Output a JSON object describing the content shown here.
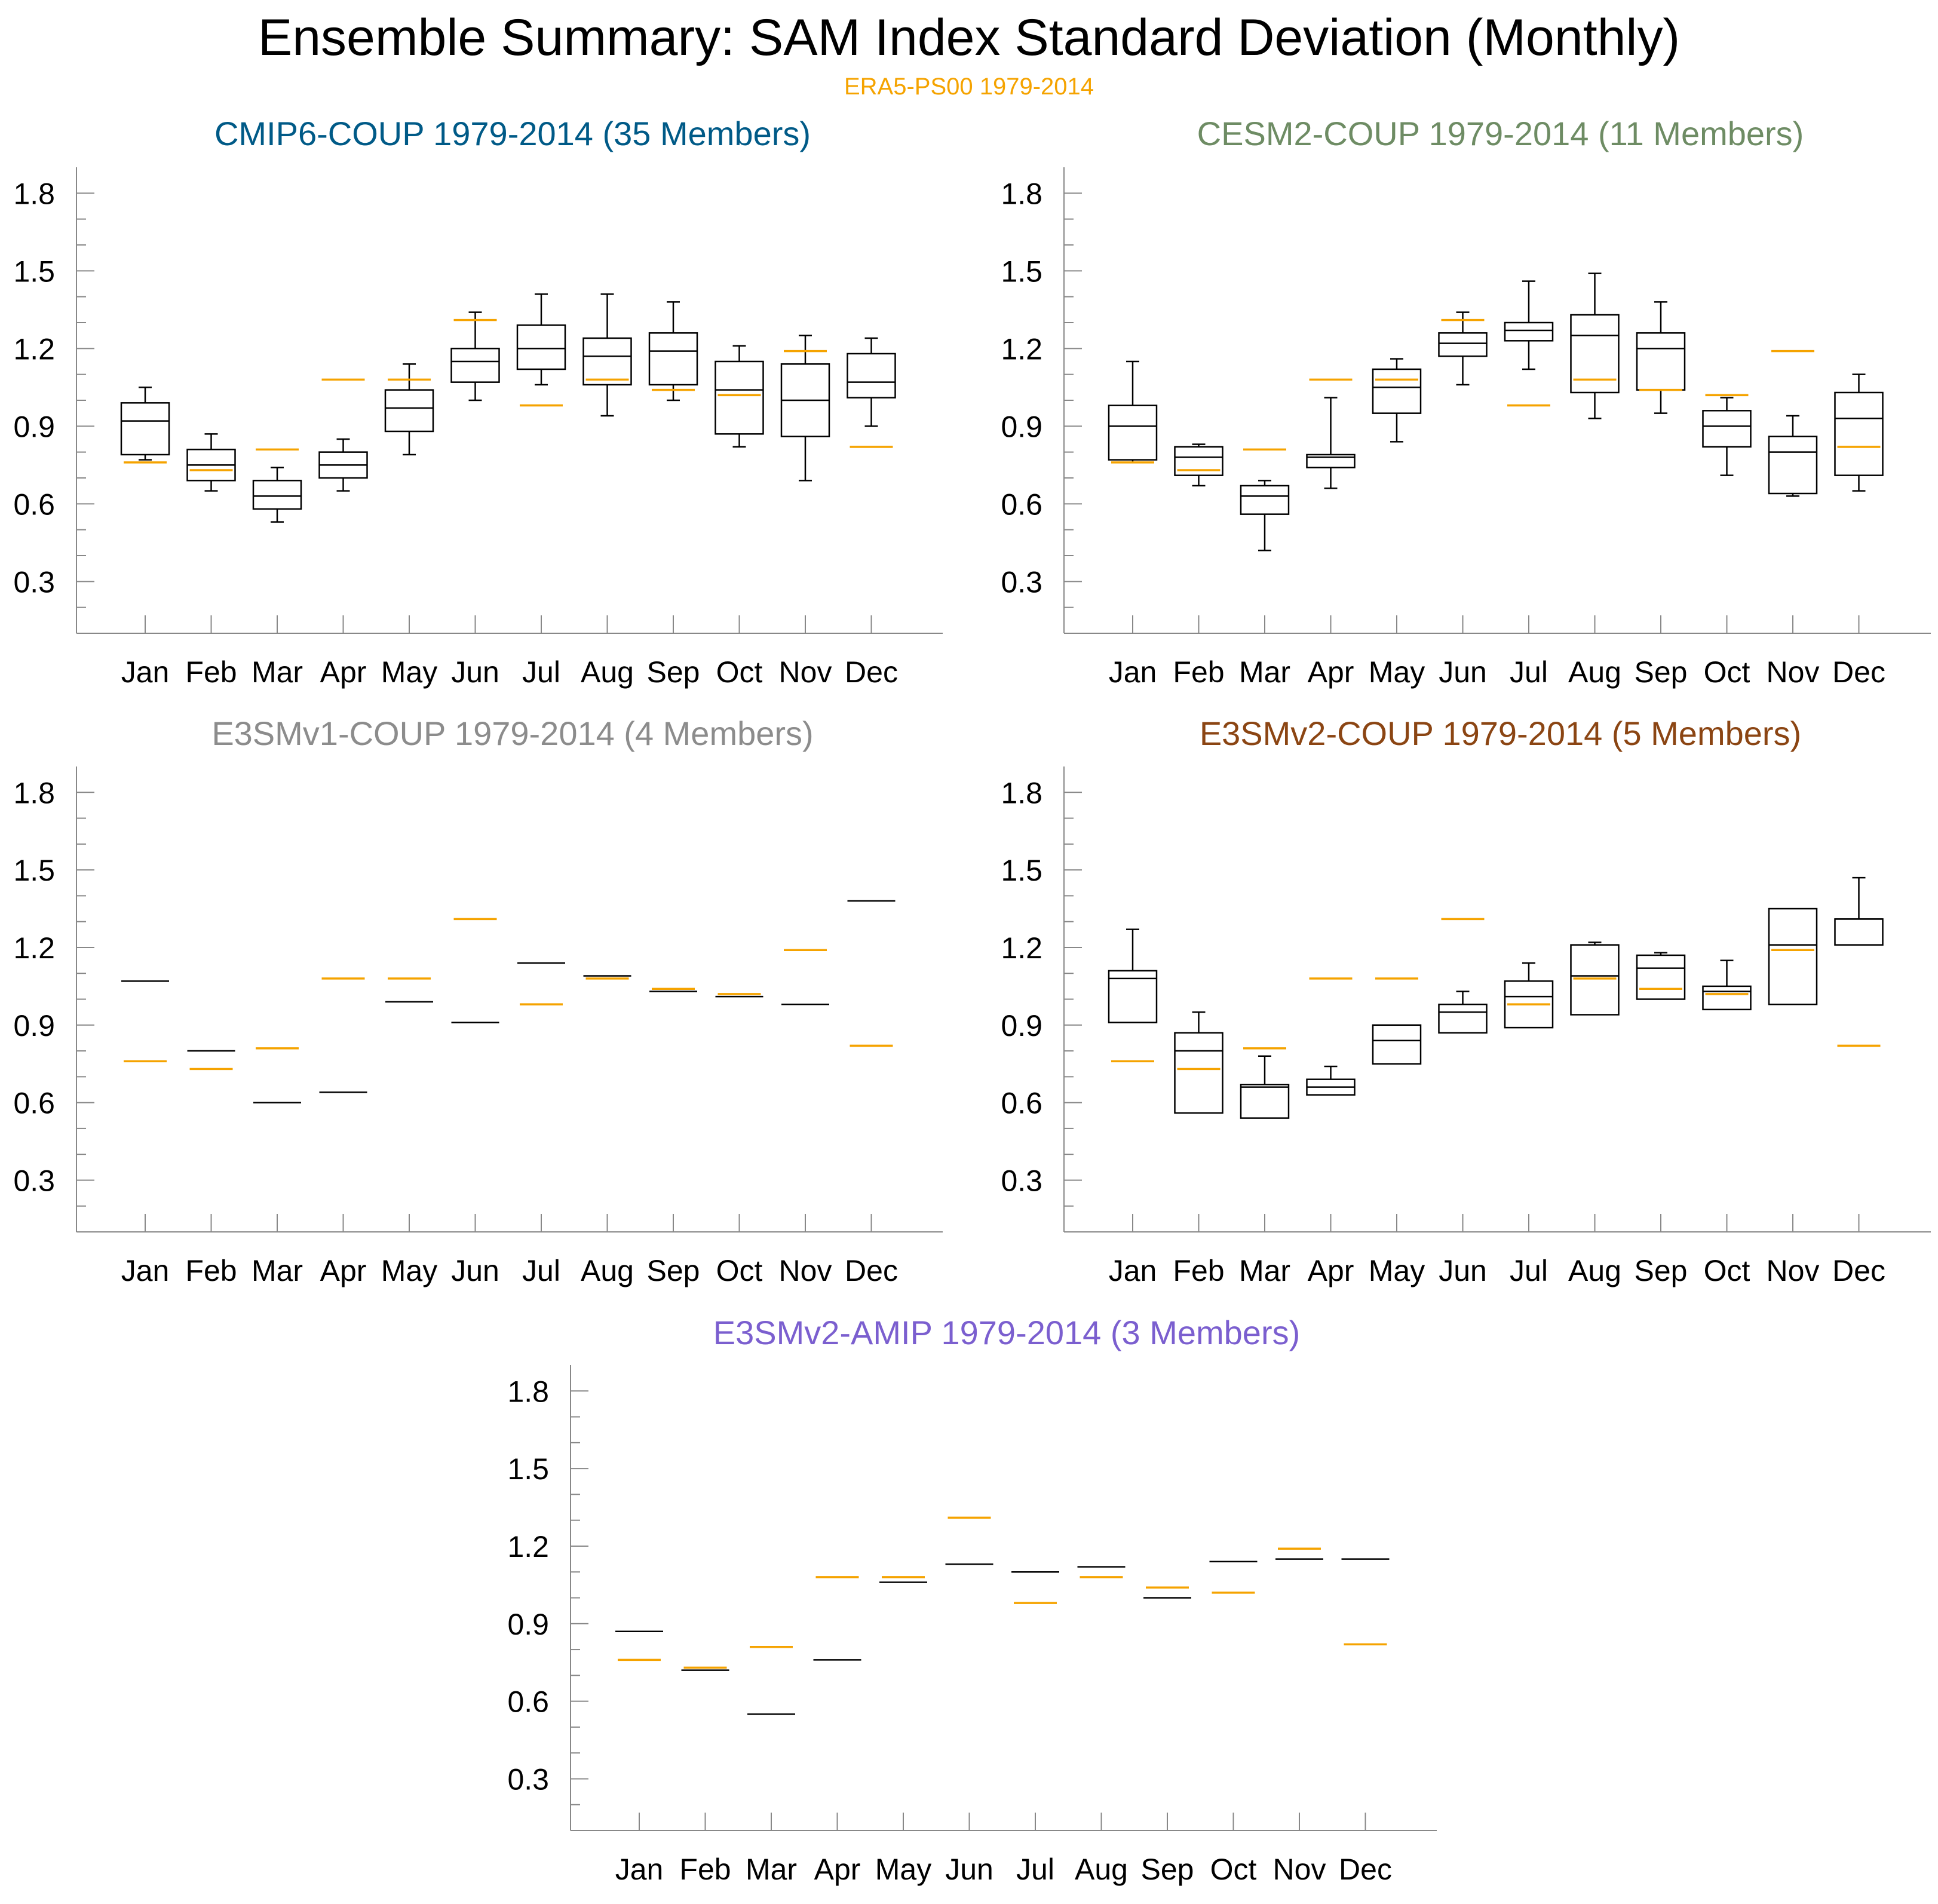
{
  "title": "Ensemble Summary: SAM Index Standard Deviation (Monthly)",
  "subtitle": "ERA5-PS00 1979-2014",
  "colors": {
    "reference": "#f5a300",
    "box": "#000000",
    "axis": "#888888"
  },
  "months": [
    "Jan",
    "Feb",
    "Mar",
    "Apr",
    "May",
    "Jun",
    "Jul",
    "Aug",
    "Sep",
    "Oct",
    "Nov",
    "Dec"
  ],
  "reference": {
    "name": "ERA5-PS00 1979-2014",
    "values": [
      0.76,
      0.73,
      0.81,
      1.08,
      1.08,
      1.31,
      0.98,
      1.08,
      1.04,
      1.02,
      1.19,
      0.82
    ]
  },
  "chart_data": [
    {
      "type": "box",
      "title": "CMIP6-COUP 1979-2014 (35 Members)",
      "title_color": "#005a87",
      "categories": [
        "Jan",
        "Feb",
        "Mar",
        "Apr",
        "May",
        "Jun",
        "Jul",
        "Aug",
        "Sep",
        "Oct",
        "Nov",
        "Dec"
      ],
      "yticks": [
        "0.3",
        "0.6",
        "0.9",
        "1.2",
        "1.5",
        "1.8"
      ],
      "ylim": [
        0.1,
        1.9
      ],
      "boxes": [
        {
          "min": 0.77,
          "q1": 0.79,
          "median": 0.92,
          "q3": 0.99,
          "max": 1.05
        },
        {
          "min": 0.65,
          "q1": 0.69,
          "median": 0.75,
          "q3": 0.81,
          "max": 0.87
        },
        {
          "min": 0.53,
          "q1": 0.58,
          "median": 0.63,
          "q3": 0.69,
          "max": 0.74
        },
        {
          "min": 0.65,
          "q1": 0.7,
          "median": 0.75,
          "q3": 0.8,
          "max": 0.85
        },
        {
          "min": 0.79,
          "q1": 0.88,
          "median": 0.97,
          "q3": 1.04,
          "max": 1.14
        },
        {
          "min": 1.0,
          "q1": 1.07,
          "median": 1.15,
          "q3": 1.2,
          "max": 1.34
        },
        {
          "min": 1.06,
          "q1": 1.12,
          "median": 1.2,
          "q3": 1.29,
          "max": 1.41
        },
        {
          "min": 0.94,
          "q1": 1.06,
          "median": 1.17,
          "q3": 1.24,
          "max": 1.41
        },
        {
          "min": 1.0,
          "q1": 1.06,
          "median": 1.19,
          "q3": 1.26,
          "max": 1.38
        },
        {
          "min": 0.82,
          "q1": 0.87,
          "median": 1.04,
          "q3": 1.15,
          "max": 1.21
        },
        {
          "min": 0.69,
          "q1": 0.86,
          "median": 1.0,
          "q3": 1.14,
          "max": 1.25
        },
        {
          "min": 0.9,
          "q1": 1.01,
          "median": 1.07,
          "q3": 1.18,
          "max": 1.24
        }
      ]
    },
    {
      "type": "box",
      "title": "CESM2-COUP 1979-2014 (11 Members)",
      "title_color": "#6e8c64",
      "categories": [
        "Jan",
        "Feb",
        "Mar",
        "Apr",
        "May",
        "Jun",
        "Jul",
        "Aug",
        "Sep",
        "Oct",
        "Nov",
        "Dec"
      ],
      "yticks": [
        "0.3",
        "0.6",
        "0.9",
        "1.2",
        "1.5",
        "1.8"
      ],
      "ylim": [
        0.1,
        1.9
      ],
      "boxes": [
        {
          "min": 0.76,
          "q1": 0.77,
          "median": 0.9,
          "q3": 0.98,
          "max": 1.15
        },
        {
          "min": 0.67,
          "q1": 0.71,
          "median": 0.78,
          "q3": 0.82,
          "max": 0.83
        },
        {
          "min": 0.42,
          "q1": 0.56,
          "median": 0.63,
          "q3": 0.67,
          "max": 0.69
        },
        {
          "min": 0.66,
          "q1": 0.74,
          "median": 0.78,
          "q3": 0.79,
          "max": 1.01
        },
        {
          "min": 0.84,
          "q1": 0.95,
          "median": 1.05,
          "q3": 1.12,
          "max": 1.16
        },
        {
          "min": 1.06,
          "q1": 1.17,
          "median": 1.22,
          "q3": 1.26,
          "max": 1.34
        },
        {
          "min": 1.12,
          "q1": 1.23,
          "median": 1.27,
          "q3": 1.3,
          "max": 1.46
        },
        {
          "min": 0.93,
          "q1": 1.03,
          "median": 1.25,
          "q3": 1.33,
          "max": 1.49
        },
        {
          "min": 0.95,
          "q1": 1.04,
          "median": 1.2,
          "q3": 1.26,
          "max": 1.38
        },
        {
          "min": 0.71,
          "q1": 0.82,
          "median": 0.9,
          "q3": 0.96,
          "max": 1.01
        },
        {
          "min": 0.63,
          "q1": 0.64,
          "median": 0.8,
          "q3": 0.86,
          "max": 0.94
        },
        {
          "min": 0.65,
          "q1": 0.71,
          "median": 0.93,
          "q3": 1.03,
          "max": 1.1
        }
      ]
    },
    {
      "type": "box",
      "title": "E3SMv1-COUP 1979-2014 (4 Members)",
      "title_color": "#8c8c8c",
      "categories": [
        "Jan",
        "Feb",
        "Mar",
        "Apr",
        "May",
        "Jun",
        "Jul",
        "Aug",
        "Sep",
        "Oct",
        "Nov",
        "Dec"
      ],
      "yticks": [
        "0.3",
        "0.6",
        "0.9",
        "1.2",
        "1.5",
        "1.8"
      ],
      "ylim": [
        0.1,
        1.9
      ],
      "boxes": [
        {
          "min": 1.07,
          "q1": 1.07,
          "median": 1.07,
          "q3": 1.07,
          "max": 1.07
        },
        {
          "min": 0.8,
          "q1": 0.8,
          "median": 0.8,
          "q3": 0.8,
          "max": 0.8
        },
        {
          "min": 0.6,
          "q1": 0.6,
          "median": 0.6,
          "q3": 0.6,
          "max": 0.6
        },
        {
          "min": 0.64,
          "q1": 0.64,
          "median": 0.64,
          "q3": 0.64,
          "max": 0.64
        },
        {
          "min": 0.99,
          "q1": 0.99,
          "median": 0.99,
          "q3": 0.99,
          "max": 0.99
        },
        {
          "min": 0.91,
          "q1": 0.91,
          "median": 0.91,
          "q3": 0.91,
          "max": 0.91
        },
        {
          "min": 1.14,
          "q1": 1.14,
          "median": 1.14,
          "q3": 1.14,
          "max": 1.14
        },
        {
          "min": 1.09,
          "q1": 1.09,
          "median": 1.09,
          "q3": 1.09,
          "max": 1.09
        },
        {
          "min": 1.03,
          "q1": 1.03,
          "median": 1.03,
          "q3": 1.03,
          "max": 1.03
        },
        {
          "min": 1.01,
          "q1": 1.01,
          "median": 1.01,
          "q3": 1.01,
          "max": 1.01
        },
        {
          "min": 0.98,
          "q1": 0.98,
          "median": 0.98,
          "q3": 0.98,
          "max": 0.98
        },
        {
          "min": 1.38,
          "q1": 1.38,
          "median": 1.38,
          "q3": 1.38,
          "max": 1.38
        }
      ]
    },
    {
      "type": "box",
      "title": "E3SMv2-COUP 1979-2014 (5 Members)",
      "title_color": "#8b4513",
      "categories": [
        "Jan",
        "Feb",
        "Mar",
        "Apr",
        "May",
        "Jun",
        "Jul",
        "Aug",
        "Sep",
        "Oct",
        "Nov",
        "Dec"
      ],
      "yticks": [
        "0.3",
        "0.6",
        "0.9",
        "1.2",
        "1.5",
        "1.8"
      ],
      "ylim": [
        0.1,
        1.9
      ],
      "boxes": [
        {
          "min": 0.91,
          "q1": 0.91,
          "median": 1.08,
          "q3": 1.11,
          "max": 1.27
        },
        {
          "min": 0.56,
          "q1": 0.56,
          "median": 0.8,
          "q3": 0.87,
          "max": 0.95
        },
        {
          "min": 0.54,
          "q1": 0.54,
          "median": 0.66,
          "q3": 0.67,
          "max": 0.78
        },
        {
          "min": 0.63,
          "q1": 0.63,
          "median": 0.66,
          "q3": 0.69,
          "max": 0.74
        },
        {
          "min": 0.75,
          "q1": 0.75,
          "median": 0.84,
          "q3": 0.9,
          "max": 0.9
        },
        {
          "min": 0.87,
          "q1": 0.87,
          "median": 0.95,
          "q3": 0.98,
          "max": 1.03
        },
        {
          "min": 0.89,
          "q1": 0.89,
          "median": 1.01,
          "q3": 1.07,
          "max": 1.14
        },
        {
          "min": 0.94,
          "q1": 0.94,
          "median": 1.09,
          "q3": 1.21,
          "max": 1.22
        },
        {
          "min": 1.0,
          "q1": 1.0,
          "median": 1.12,
          "q3": 1.17,
          "max": 1.18
        },
        {
          "min": 0.96,
          "q1": 0.96,
          "median": 1.03,
          "q3": 1.05,
          "max": 1.15
        },
        {
          "min": 0.98,
          "q1": 0.98,
          "median": 1.21,
          "q3": 1.35,
          "max": 1.35
        },
        {
          "min": 1.21,
          "q1": 1.21,
          "median": 1.31,
          "q3": 1.31,
          "max": 1.47
        }
      ]
    },
    {
      "type": "box",
      "title": "E3SMv2-AMIP 1979-2014 (3 Members)",
      "title_color": "#7b5fcf",
      "categories": [
        "Jan",
        "Feb",
        "Mar",
        "Apr",
        "May",
        "Jun",
        "Jul",
        "Aug",
        "Sep",
        "Oct",
        "Nov",
        "Dec"
      ],
      "yticks": [
        "0.3",
        "0.6",
        "0.9",
        "1.2",
        "1.5",
        "1.8"
      ],
      "ylim": [
        0.1,
        1.9
      ],
      "boxes": [
        {
          "min": 0.87,
          "q1": 0.87,
          "median": 0.87,
          "q3": 0.87,
          "max": 0.87
        },
        {
          "min": 0.72,
          "q1": 0.72,
          "median": 0.72,
          "q3": 0.72,
          "max": 0.72
        },
        {
          "min": 0.55,
          "q1": 0.55,
          "median": 0.55,
          "q3": 0.55,
          "max": 0.55
        },
        {
          "min": 0.76,
          "q1": 0.76,
          "median": 0.76,
          "q3": 0.76,
          "max": 0.76
        },
        {
          "min": 1.06,
          "q1": 1.06,
          "median": 1.06,
          "q3": 1.06,
          "max": 1.06
        },
        {
          "min": 1.13,
          "q1": 1.13,
          "median": 1.13,
          "q3": 1.13,
          "max": 1.13
        },
        {
          "min": 1.1,
          "q1": 1.1,
          "median": 1.1,
          "q3": 1.1,
          "max": 1.1
        },
        {
          "min": 1.12,
          "q1": 1.12,
          "median": 1.12,
          "q3": 1.12,
          "max": 1.12
        },
        {
          "min": 1.0,
          "q1": 1.0,
          "median": 1.0,
          "q3": 1.0,
          "max": 1.0
        },
        {
          "min": 1.14,
          "q1": 1.14,
          "median": 1.14,
          "q3": 1.14,
          "max": 1.14
        },
        {
          "min": 1.15,
          "q1": 1.15,
          "median": 1.15,
          "q3": 1.15,
          "max": 1.15
        },
        {
          "min": 1.15,
          "q1": 1.15,
          "median": 1.15,
          "q3": 1.15,
          "max": 1.15
        }
      ]
    }
  ]
}
